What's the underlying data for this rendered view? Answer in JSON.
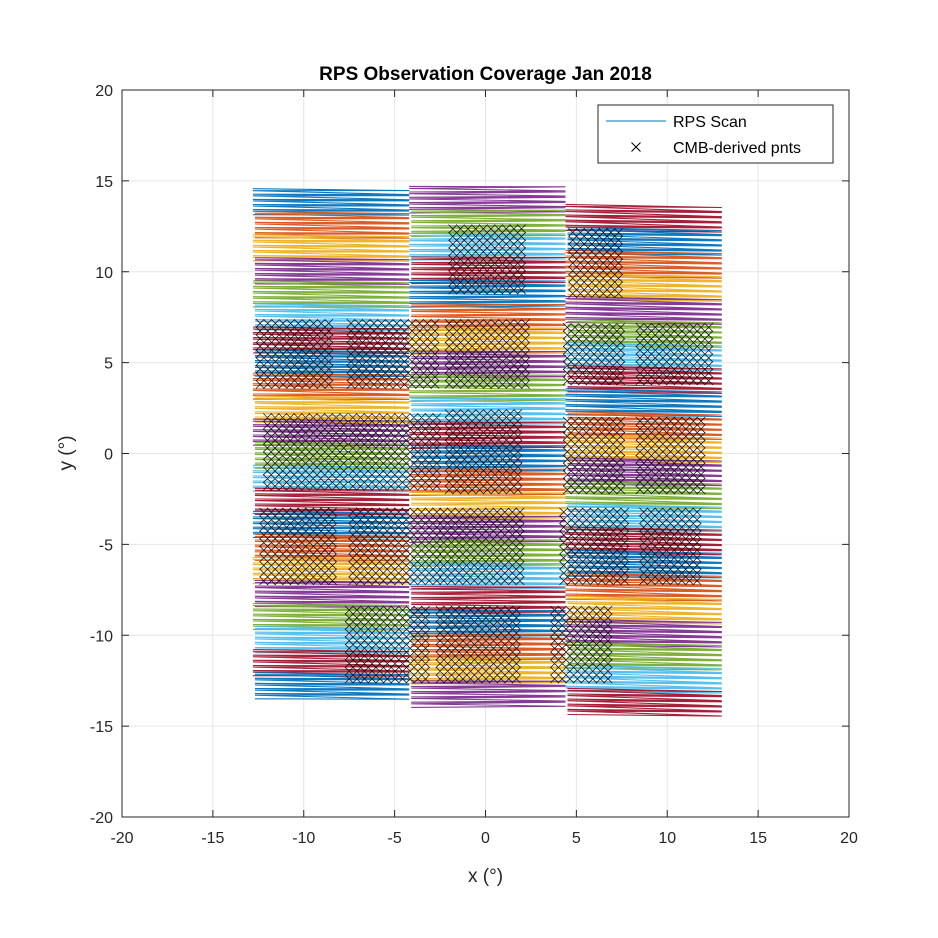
{
  "chart_data": {
    "type": "scatter",
    "title": "RPS Observation Coverage Jan 2018",
    "xlabel": "x (°)",
    "ylabel": "y (°)",
    "xlim": [
      -20,
      20
    ],
    "ylim": [
      -20,
      20
    ],
    "xticks": [
      -20,
      -15,
      -10,
      -5,
      0,
      5,
      10,
      15,
      20
    ],
    "yticks": [
      -20,
      -15,
      -10,
      -5,
      0,
      5,
      10,
      15,
      20
    ],
    "grid": true,
    "legend_position": "top-right",
    "legend": [
      {
        "label": "RPS Scan",
        "marker": "line",
        "color": "#0072BD"
      },
      {
        "label": "CMB-derived pnts",
        "marker": "x",
        "color": "#000000"
      }
    ],
    "band_colors": [
      "#0072BD",
      "#D95319",
      "#EDB120",
      "#7E2F8E",
      "#77AC30",
      "#4DBEEE",
      "#A2142F"
    ],
    "scan_columns": [
      {
        "x_left": -12.8,
        "x_right": -4.2,
        "y_top": 14.6,
        "y_bottom": -13.3,
        "bands": 22
      },
      {
        "x_left": -4.2,
        "x_right": 4.4,
        "y_top": 14.6,
        "y_bottom": -13.9,
        "bands": 22
      },
      {
        "x_left": 4.4,
        "x_right": 13.0,
        "y_top": 14.0,
        "y_bottom": -13.9,
        "bands": 22
      }
    ],
    "cmb_point_regions": [
      {
        "x": [
          -1.8,
          2.3
        ],
        "y": [
          9.0,
          12.4
        ]
      },
      {
        "x": [
          4.8,
          7.5
        ],
        "y": [
          8.8,
          12.2
        ]
      },
      {
        "x": [
          -12.4,
          -8.4
        ],
        "y": [
          3.8,
          7.4
        ]
      },
      {
        "x": [
          -7.4,
          -2.7
        ],
        "y": [
          3.8,
          7.4
        ]
      },
      {
        "x": [
          -2.0,
          2.3
        ],
        "y": [
          3.8,
          7.4
        ]
      },
      {
        "x": [
          4.5,
          7.5
        ],
        "y": [
          4.0,
          7.3
        ]
      },
      {
        "x": [
          8.5,
          12.3
        ],
        "y": [
          4.0,
          7.3
        ]
      },
      {
        "x": [
          -12.0,
          -7.8
        ],
        "y": [
          -1.8,
          2.3
        ]
      },
      {
        "x": [
          -7.3,
          -2.5
        ],
        "y": [
          -1.8,
          2.3
        ]
      },
      {
        "x": [
          -2.0,
          2.0
        ],
        "y": [
          -2.0,
          2.3
        ]
      },
      {
        "x": [
          4.5,
          7.8
        ],
        "y": [
          -2.0,
          2.0
        ]
      },
      {
        "x": [
          8.5,
          12.2
        ],
        "y": [
          -2.0,
          2.0
        ]
      },
      {
        "x": [
          -12.2,
          -8.3
        ],
        "y": [
          -7.0,
          -3.0
        ]
      },
      {
        "x": [
          -7.3,
          -2.3
        ],
        "y": [
          -7.0,
          -3.0
        ]
      },
      {
        "x": [
          -2.3,
          2.2
        ],
        "y": [
          -7.0,
          -3.0
        ]
      },
      {
        "x": [
          4.3,
          7.7
        ],
        "y": [
          -7.0,
          -3.0
        ]
      },
      {
        "x": [
          8.7,
          12.0
        ],
        "y": [
          -7.0,
          -3.0
        ]
      },
      {
        "x": [
          -7.5,
          -3.0
        ],
        "y": [
          -12.4,
          -8.6
        ]
      },
      {
        "x": [
          -2.5,
          1.8
        ],
        "y": [
          -12.4,
          -8.6
        ]
      },
      {
        "x": [
          3.8,
          7.0
        ],
        "y": [
          -12.4,
          -8.6
        ]
      }
    ]
  }
}
